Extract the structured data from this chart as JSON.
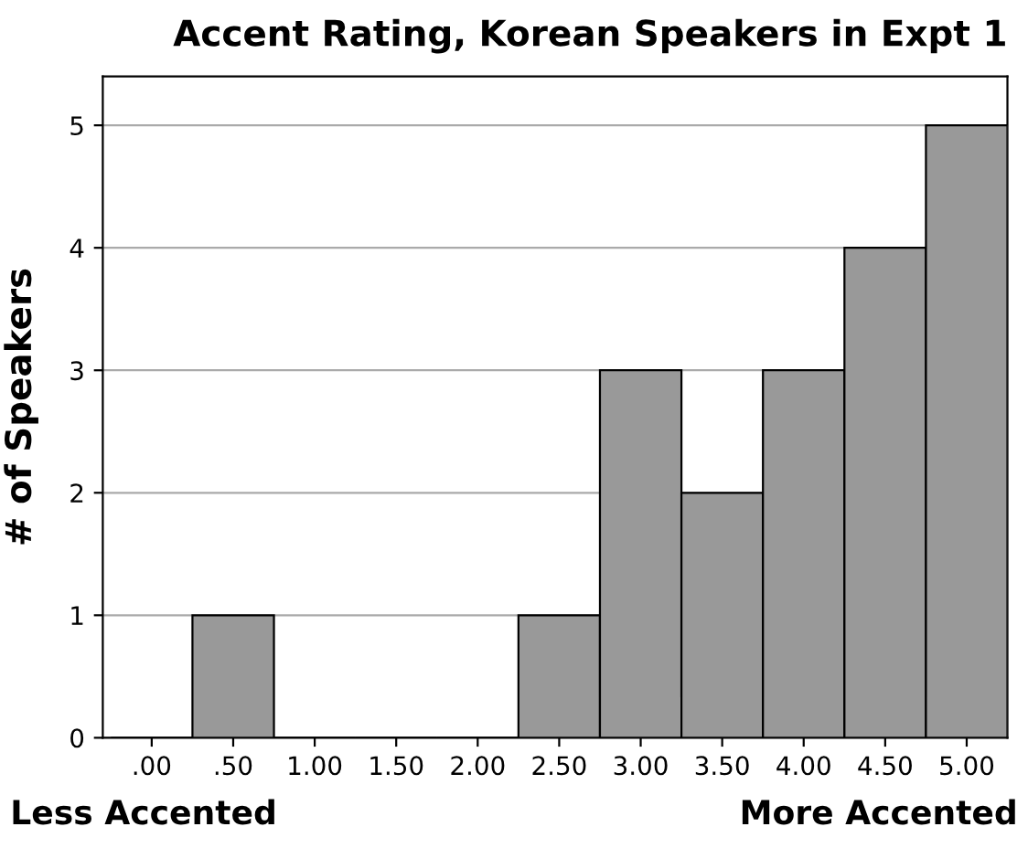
{
  "chart_data": {
    "type": "histogram",
    "title": "Accent Rating, Korean Speakers in Expt 1",
    "ylabel": "# of Speakers",
    "bins": [
      -0.25,
      0.25,
      0.75,
      1.25,
      1.75,
      2.25,
      2.75,
      3.25,
      3.75,
      4.25,
      4.75,
      5.25
    ],
    "values": [
      0,
      1,
      0,
      0,
      0,
      1,
      3,
      2,
      3,
      4,
      5
    ],
    "color": "#999999",
    "xlim": [
      -0.3,
      5.25
    ],
    "xticks": [
      {
        "value": 0,
        "label": ".00"
      },
      {
        "value": 0.5,
        "label": ".50"
      },
      {
        "value": 1,
        "label": "1.00"
      },
      {
        "value": 1.5,
        "label": "1.50"
      },
      {
        "value": 2,
        "label": "2.00"
      },
      {
        "value": 2.5,
        "label": "2.50"
      },
      {
        "value": 3,
        "label": "3.00"
      },
      {
        "value": 3.5,
        "label": "3.50"
      },
      {
        "value": 4,
        "label": "4.00"
      },
      {
        "value": 4.5,
        "label": "4.50"
      },
      {
        "value": 5,
        "label": "5.00"
      }
    ],
    "ylim": [
      0,
      5.4
    ],
    "yticks": [
      0,
      1,
      2,
      3,
      4,
      5
    ],
    "grid": "y",
    "annotations": [
      "Less Accented",
      "More Accented"
    ]
  }
}
